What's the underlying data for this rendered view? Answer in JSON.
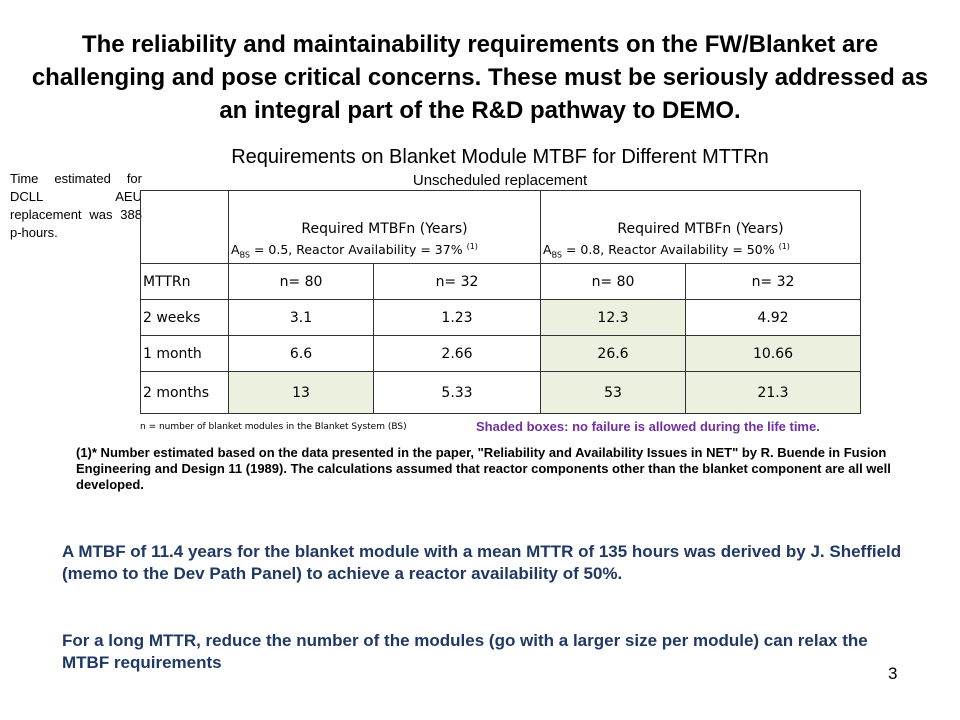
{
  "slide": {
    "title": "The reliability and maintainability requirements on the FW/Blanket are challenging and pose critical concerns. These must be seriously addressed as an integral part of the R&D pathway to DEMO.",
    "page_number": "3"
  },
  "table": {
    "title": "Requirements on Blanket Module MTBF for Different MTTRn",
    "subtitle": "Unscheduled replacement",
    "group_headers": [
      {
        "label": "Required MTBFn (Years)",
        "condition_prefix": "A",
        "condition_sub": "BS",
        "condition_text": " = 0.5, Reactor Availability = 37% ",
        "condition_sup": "(1)"
      },
      {
        "label": "Required MTBFn (Years)",
        "condition_prefix": "A",
        "condition_sub": "BS",
        "condition_text": " = 0.8, Reactor Availability = 50% ",
        "condition_sup": "(1)"
      }
    ],
    "column_headers": [
      "MTTRn",
      "n= 80",
      "n= 32",
      "n= 80",
      "n= 32"
    ],
    "rows": [
      {
        "label": "2 weeks",
        "values": [
          "3.1",
          "1.23",
          "12.3",
          "4.92"
        ],
        "shaded": [
          false,
          false,
          true,
          false
        ]
      },
      {
        "label": "1 month",
        "values": [
          "6.6",
          "2.66",
          "26.6",
          "10.66"
        ],
        "shaded": [
          false,
          false,
          true,
          true
        ]
      },
      {
        "label": "2 months",
        "values": [
          "13",
          "5.33",
          "53",
          "21.3"
        ],
        "shaded": [
          true,
          false,
          true,
          true
        ]
      }
    ],
    "footnote": "n = number of blanket modules in the Blanket System (BS)",
    "shaded_note": "Shaded boxes: no failure is allowed during the life time.",
    "shade_color": "#ebf1de"
  },
  "side_note": "Time estimated for DCLL AEU replacement was 388 p-hours.",
  "reference_note": "(1)* Number estimated based on the data presented in the paper, \"Reliability and Availability Issues in NET\" by R. Buende in Fusion Engineering and Design 11 (1989). The calculations assumed that reactor components other than the blanket component are all well developed.",
  "paragraphs": [
    "A MTBF of 11.4 years for the blanket module with a mean MTTR of 135 hours was derived by J. Sheffield (memo to the Dev Path Panel) to achieve a reactor availability of 50%.",
    "For a long MTTR, reduce the number of the modules (go with a larger size per module) can relax the MTBF requirements"
  ],
  "colors": {
    "paragraph_text": "#1f3864",
    "shaded_note_text": "#7030a0"
  }
}
